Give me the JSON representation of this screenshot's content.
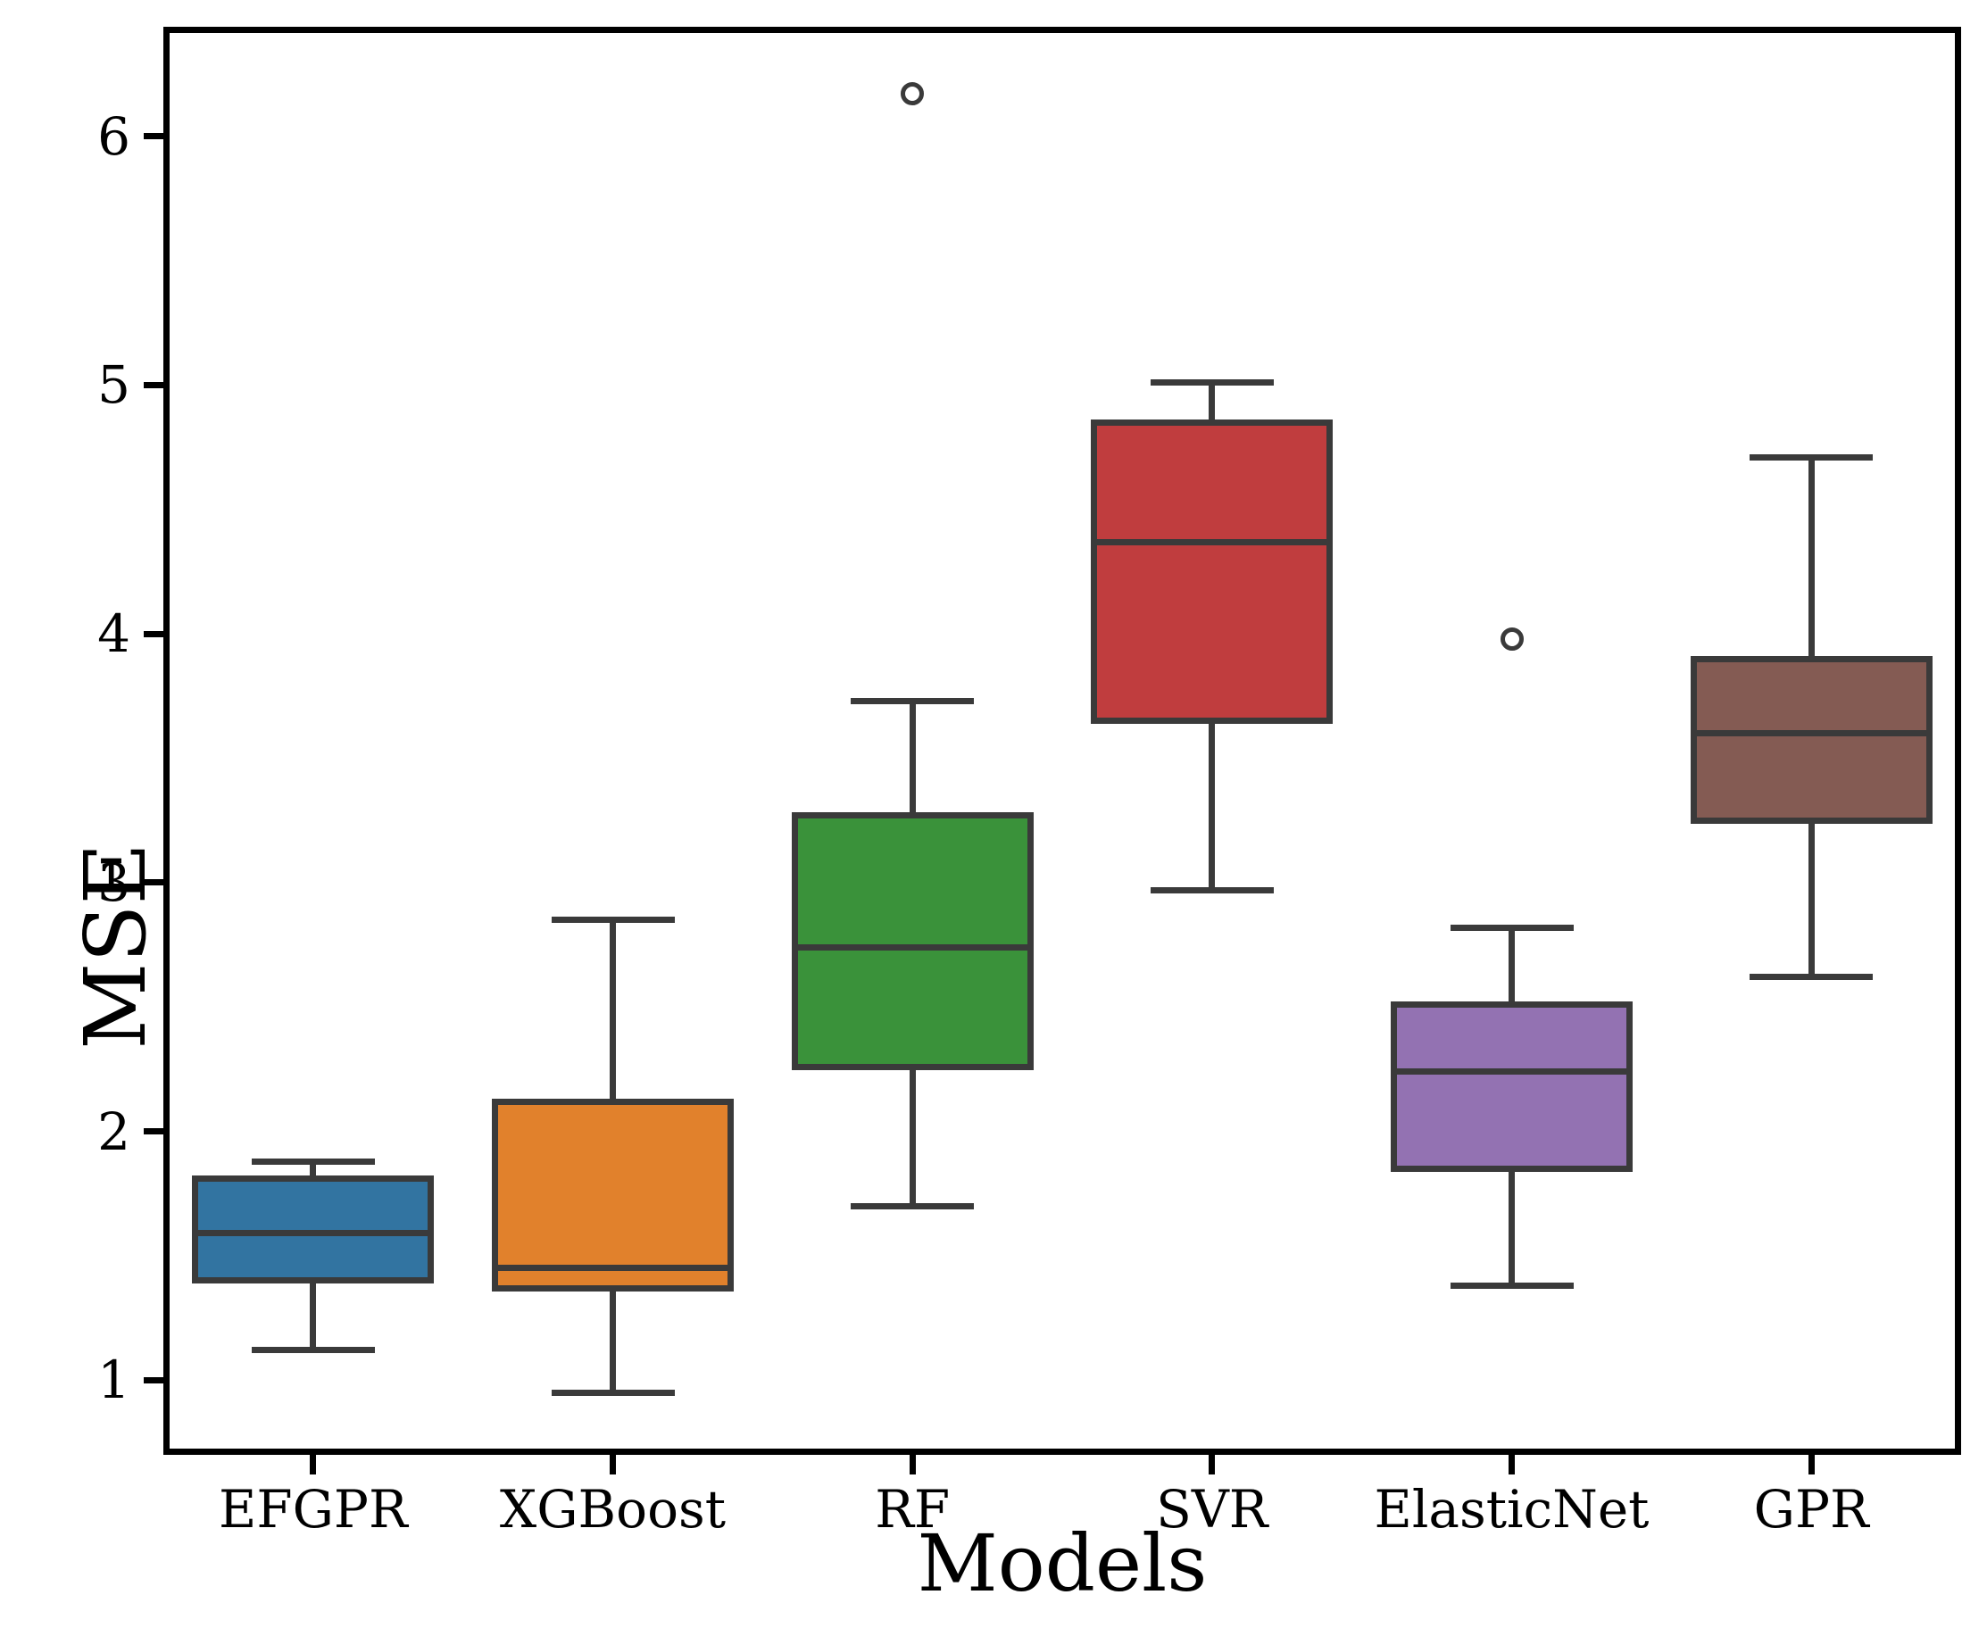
{
  "chart_data": {
    "type": "box",
    "title": "",
    "xlabel": "Models",
    "ylabel": "MSE",
    "categories": [
      "EFGPR",
      "XGBoost",
      "RF",
      "SVR",
      "ElasticNet",
      "GPR"
    ],
    "yticks": [
      1,
      2,
      3,
      4,
      5,
      6
    ],
    "ylim": [
      0.7,
      6.44
    ],
    "grid": false,
    "legend": "none",
    "edge_color": "#3A3A3A",
    "background_color": "#FFFFFF",
    "series": [
      {
        "name": "EFGPR",
        "color": "#3274A1",
        "whislo": 1.12,
        "q1": 1.4,
        "med": 1.59,
        "q3": 1.81,
        "whishi": 1.88,
        "fliers": []
      },
      {
        "name": "XGBoost",
        "color": "#E1812C",
        "whislo": 0.95,
        "q1": 1.37,
        "med": 1.45,
        "q3": 2.12,
        "whishi": 2.85,
        "fliers": []
      },
      {
        "name": "RF",
        "color": "#3A923A",
        "whislo": 1.7,
        "q1": 2.26,
        "med": 2.74,
        "q3": 3.27,
        "whishi": 3.73,
        "fliers": [
          6.17
        ]
      },
      {
        "name": "SVR",
        "color": "#C03D3E",
        "whislo": 2.97,
        "q1": 3.65,
        "med": 4.37,
        "q3": 4.85,
        "whishi": 5.01,
        "fliers": []
      },
      {
        "name": "ElasticNet",
        "color": "#9372B2",
        "whislo": 1.38,
        "q1": 1.85,
        "med": 2.24,
        "q3": 2.51,
        "whishi": 2.82,
        "fliers": [
          3.98
        ]
      },
      {
        "name": "GPR",
        "color": "#845B53",
        "whislo": 2.62,
        "q1": 3.25,
        "med": 3.6,
        "q3": 3.9,
        "whishi": 4.71,
        "fliers": []
      }
    ]
  }
}
